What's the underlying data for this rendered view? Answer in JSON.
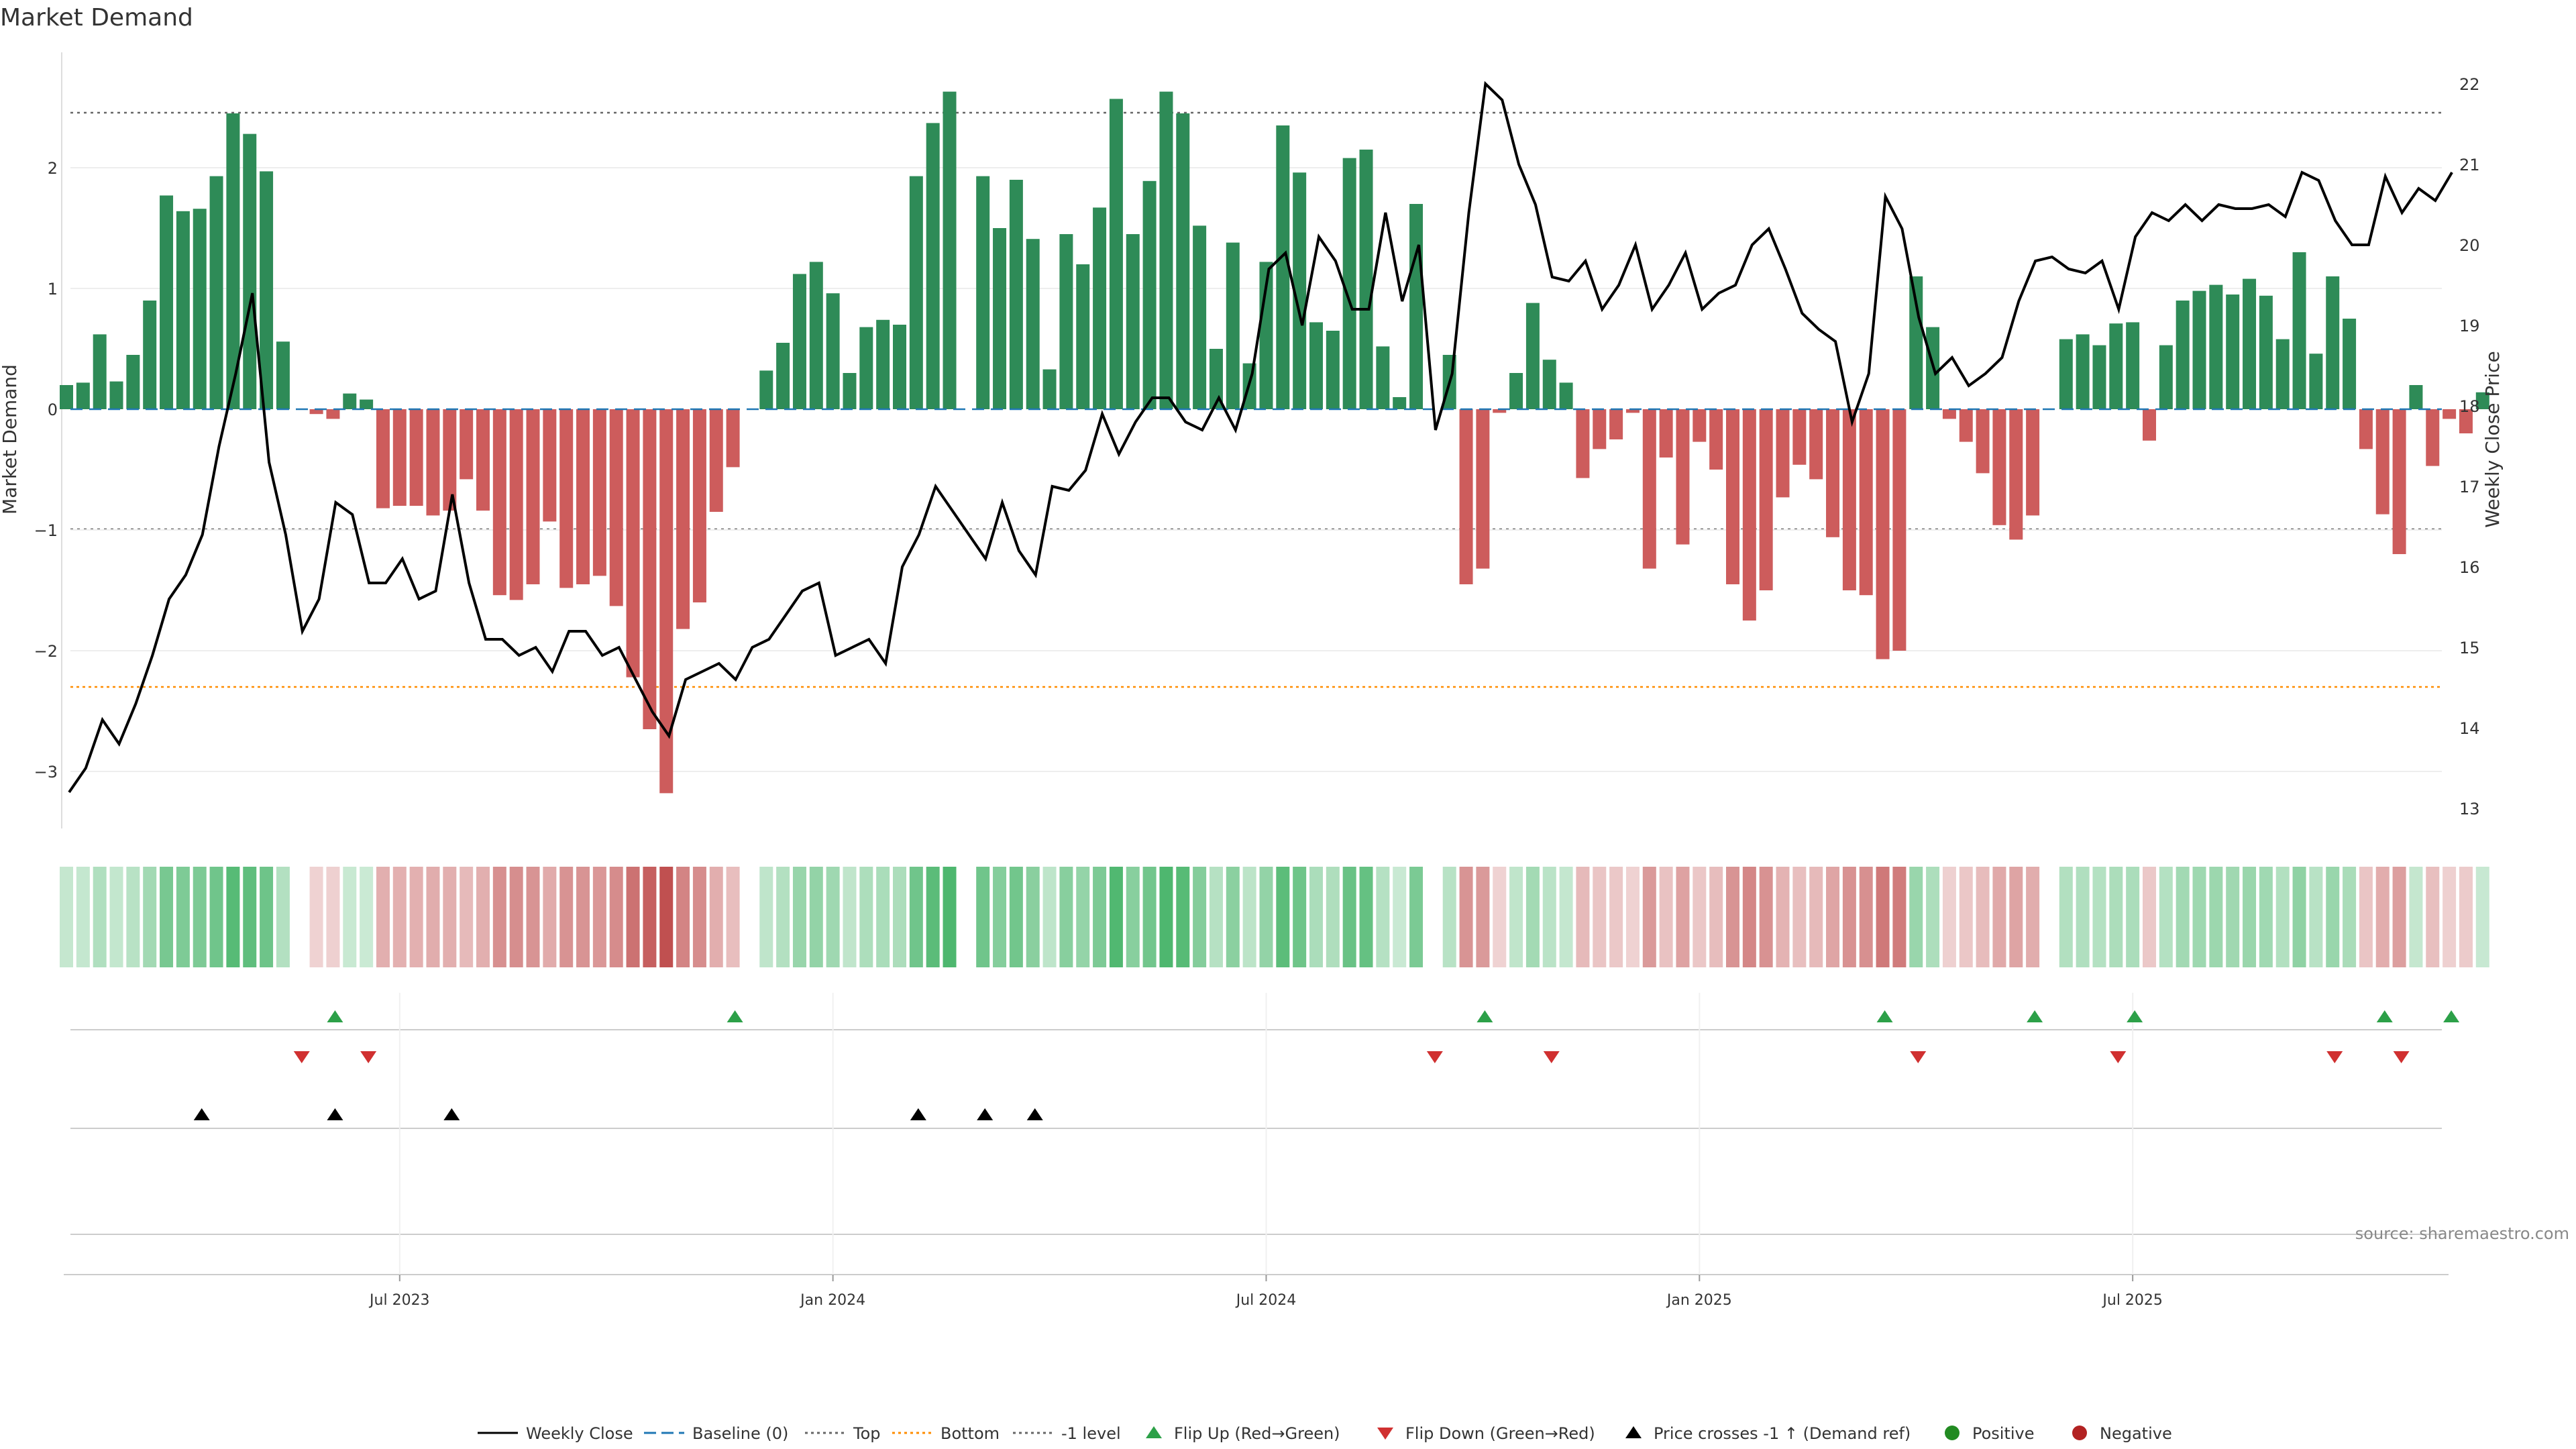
{
  "chart_data": {
    "type": "bar",
    "title": "Market Demand",
    "ylabel": "Market Demand",
    "ylabel_right": "Weekly Close Price",
    "ylim": [
      -3.5,
      3.0
    ],
    "ylim_right": [
      12.8,
      22.6
    ],
    "yticks": [
      {
        "v": 2,
        "t": "2"
      },
      {
        "v": 1,
        "t": "1"
      },
      {
        "v": 0,
        "t": "0"
      },
      {
        "v": -1,
        "t": "−1"
      },
      {
        "v": -2,
        "t": "−2"
      },
      {
        "v": -3,
        "t": "−3"
      }
    ],
    "yticks_right": [
      {
        "v": 22,
        "t": "22"
      },
      {
        "v": 21,
        "t": "21"
      },
      {
        "v": 20,
        "t": "20"
      },
      {
        "v": 19,
        "t": "19"
      },
      {
        "v": 18,
        "t": "18"
      },
      {
        "v": 17,
        "t": "17"
      },
      {
        "v": 16,
        "t": "16"
      },
      {
        "v": 15,
        "t": "15"
      },
      {
        "v": 14,
        "t": "14"
      },
      {
        "v": 13,
        "t": "13"
      }
    ],
    "xticks": [
      {
        "week": 20,
        "t": "Jul 2023"
      },
      {
        "week": 46,
        "t": "Jan 2024"
      },
      {
        "week": 72,
        "t": "Jul 2024"
      },
      {
        "week": 98,
        "t": "Jan 2025"
      },
      {
        "week": 124,
        "t": "Jul 2025"
      }
    ],
    "reference_lines": {
      "top": 2.45,
      "bottom": -2.33,
      "minus_one": -1.0,
      "baseline": 0
    },
    "demand": [
      0.2,
      0.22,
      0.62,
      0.23,
      0.45,
      0.9,
      1.77,
      1.64,
      1.66,
      1.93,
      2.45,
      2.28,
      1.97,
      0.56,
      0,
      -0.04,
      -0.08,
      0.13,
      0.08,
      -0.82,
      -0.8,
      -0.8,
      -0.88,
      -0.84,
      -0.58,
      -0.84,
      -1.54,
      -1.58,
      -1.45,
      -0.93,
      -1.48,
      -1.45,
      -1.38,
      -1.63,
      -2.22,
      -2.65,
      -3.18,
      -1.82,
      -1.6,
      -0.85,
      -0.48,
      0,
      0.32,
      0.55,
      1.12,
      1.22,
      0.96,
      0.3,
      0.68,
      0.74,
      0.7,
      1.93,
      2.37,
      2.63,
      0,
      1.93,
      1.5,
      1.9,
      1.41,
      0.33,
      1.45,
      1.2,
      1.67,
      2.57,
      1.45,
      1.89,
      2.63,
      2.45,
      1.52,
      0.5,
      1.38,
      0.38,
      1.22,
      2.35,
      1.96,
      0.72,
      0.65,
      2.08,
      2.15,
      0.52,
      0.1,
      1.7,
      0,
      0.45,
      -1.45,
      -1.32,
      -0.03,
      0.3,
      0.88,
      0.41,
      0.22,
      -0.57,
      -0.33,
      -0.25,
      -0.03,
      -1.32,
      -0.4,
      -1.12,
      -0.27,
      -0.5,
      -1.45,
      -1.75,
      -1.5,
      -0.73,
      -0.46,
      -0.58,
      -1.06,
      -1.5,
      -1.54,
      -2.07,
      -2.0,
      1.1,
      0.68,
      -0.08,
      -0.27,
      -0.53,
      -0.96,
      -1.08,
      -0.88,
      0,
      0.58,
      0.62,
      0.53,
      0.71,
      0.72,
      -0.26,
      0.53,
      0.9,
      0.98,
      1.03,
      0.95,
      1.08,
      0.94,
      0.58,
      1.3,
      0.46,
      1.1,
      0.75,
      -0.33,
      -0.87,
      -1.2,
      0.2,
      -0.47,
      -0.08,
      -0.2,
      0.14
    ],
    "close": [
      13.2,
      13.5,
      14.1,
      13.8,
      14.3,
      14.9,
      15.6,
      15.9,
      16.4,
      17.5,
      18.4,
      19.4,
      17.3,
      16.4,
      15.2,
      15.6,
      16.8,
      16.65,
      15.8,
      15.8,
      16.1,
      15.6,
      15.7,
      16.9,
      15.8,
      15.1,
      15.1,
      14.9,
      15.0,
      14.7,
      15.2,
      15.2,
      14.9,
      15.0,
      14.6,
      14.2,
      13.9,
      14.6,
      14.7,
      14.8,
      14.6,
      15.0,
      15.1,
      15.4,
      15.7,
      15.8,
      14.9,
      15.0,
      15.1,
      14.8,
      16.0,
      16.4,
      17.0,
      16.7,
      16.4,
      16.1,
      16.8,
      16.2,
      15.9,
      17.0,
      16.95,
      17.2,
      17.9,
      17.4,
      17.8,
      18.1,
      18.1,
      17.8,
      17.7,
      18.1,
      17.7,
      18.4,
      19.7,
      19.9,
      19.0,
      20.1,
      19.8,
      19.2,
      19.2,
      20.4,
      19.3,
      20.0,
      17.7,
      18.4,
      20.4,
      22.0,
      21.8,
      21.0,
      20.5,
      19.6,
      19.55,
      19.8,
      19.2,
      19.5,
      20.0,
      19.2,
      19.5,
      19.9,
      19.2,
      19.4,
      19.5,
      20.0,
      20.2,
      19.7,
      19.15,
      18.95,
      18.8,
      17.8,
      18.4,
      20.6,
      20.2,
      19.1,
      18.4,
      18.6,
      18.25,
      18.4,
      18.6,
      19.3,
      19.8,
      19.85,
      19.7,
      19.65,
      19.8,
      19.2,
      20.1,
      20.4,
      20.3,
      20.5,
      20.3,
      20.5,
      20.45,
      20.45,
      20.5,
      20.35,
      20.9,
      20.8,
      20.3,
      20.0,
      20.0,
      20.85,
      20.4,
      20.7,
      20.55,
      20.9
    ],
    "flip_up_weeks": [
      16,
      40,
      85,
      109,
      118,
      124,
      139,
      143
    ],
    "flip_down_weeks": [
      14,
      18,
      82,
      89,
      111,
      123,
      136,
      140
    ],
    "price_cross_weeks": [
      8,
      16,
      23,
      51,
      55,
      58
    ],
    "source": "source: sharemaestro.com",
    "legend": [
      "Weekly Close",
      "Baseline (0)",
      "Top",
      "Bottom",
      "-1 level",
      "Flip Up (Red→Green)",
      "Flip Down (Green→Red)",
      "Price crosses -1 ↑ (Demand ref)",
      "Positive",
      "Negative"
    ]
  },
  "colors": {
    "positive": "#2e8b57",
    "negative": "#cd5c5c",
    "flip_up": "#2ca048",
    "flip_down": "#d03030",
    "price_line": "#000000",
    "baseline": "#1f77b4",
    "top": "#666666",
    "bottom": "#ff8c00",
    "minus_one": "#666666",
    "dot_positive": "#228b22",
    "dot_negative": "#b22222"
  }
}
